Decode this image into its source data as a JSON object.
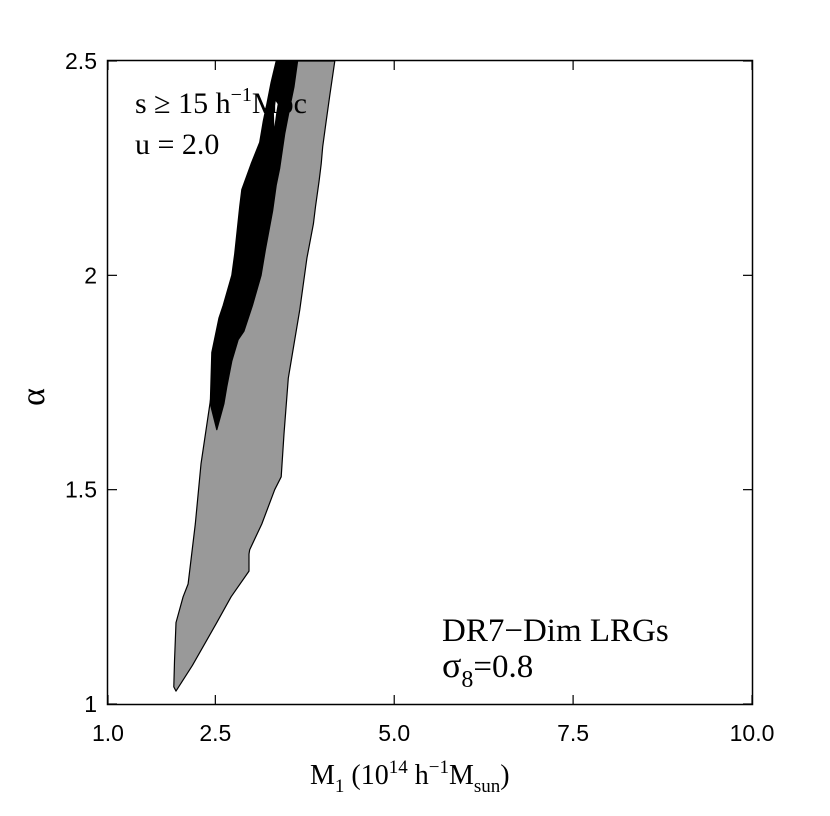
{
  "chart_data": {
    "type": "contour",
    "xlabel": {
      "main": "M",
      "sub1": "1",
      "mid": " (10",
      "sup1": "14",
      "mid2": " h",
      "sup2": "−1",
      "mid3": "M",
      "sub2": "sun",
      "end": ")"
    },
    "ylabel": "α",
    "xlim": [
      1.0,
      10.0
    ],
    "ylim": [
      1.0,
      2.5
    ],
    "x_ticks": [
      1.0,
      2.5,
      5.0,
      7.5,
      10.0
    ],
    "x_tick_labels": [
      "1.0",
      "2.5",
      "5.0",
      "7.5",
      "10.0"
    ],
    "y_ticks": [
      1.0,
      1.5,
      2.0,
      2.5
    ],
    "y_tick_labels": [
      "1",
      "1.5",
      "2",
      "2.5"
    ],
    "annotations": {
      "top_left_line1": {
        "pre": "s ≥ 15 h",
        "sup": "−1",
        "post": "Mpc"
      },
      "top_left_line2": "u = 2.0",
      "bottom_right_line1": "DR7−Dim LRGs",
      "bottom_right_line2": {
        "sigma": "σ",
        "sub": "8",
        "post": "=0.8"
      }
    },
    "colors": {
      "outer_contour": "#999999",
      "inner_contour": "#000000",
      "peak": "#ffffff",
      "axes": "#000000"
    },
    "series": [
      {
        "name": "outer_contour",
        "points": [
          [
            1.95,
            1.03
          ],
          [
            2.18,
            1.09
          ],
          [
            2.52,
            1.19
          ],
          [
            2.72,
            1.25
          ],
          [
            2.97,
            1.31
          ],
          [
            2.97,
            1.35
          ],
          [
            2.98,
            1.36
          ],
          [
            3.15,
            1.42
          ],
          [
            3.33,
            1.5
          ],
          [
            3.42,
            1.53
          ],
          [
            3.46,
            1.63
          ],
          [
            3.52,
            1.76
          ],
          [
            3.58,
            1.82
          ],
          [
            3.68,
            1.92
          ],
          [
            3.78,
            2.04
          ],
          [
            3.87,
            2.12
          ],
          [
            3.9,
            2.16
          ],
          [
            3.95,
            2.22
          ],
          [
            3.98,
            2.26
          ],
          [
            4.0,
            2.3
          ],
          [
            4.05,
            2.36
          ],
          [
            4.1,
            2.42
          ],
          [
            4.17,
            2.5
          ],
          [
            3.48,
            2.5
          ],
          [
            3.4,
            2.46
          ],
          [
            3.27,
            2.4
          ],
          [
            3.2,
            2.3
          ],
          [
            3.0,
            2.15
          ],
          [
            2.85,
            2.05
          ],
          [
            2.62,
            1.87
          ],
          [
            2.45,
            1.73
          ],
          [
            2.3,
            1.56
          ],
          [
            2.22,
            1.42
          ],
          [
            2.12,
            1.28
          ],
          [
            2.05,
            1.25
          ],
          [
            1.95,
            1.19
          ],
          [
            1.93,
            1.1
          ],
          [
            1.92,
            1.04
          ]
        ]
      },
      {
        "name": "inner_contour",
        "points": [
          [
            2.52,
            1.64
          ],
          [
            2.62,
            1.7
          ],
          [
            2.66,
            1.74
          ],
          [
            2.73,
            1.8
          ],
          [
            2.82,
            1.85
          ],
          [
            2.9,
            1.87
          ],
          [
            3.02,
            1.93
          ],
          [
            3.14,
            2.0
          ],
          [
            3.2,
            2.06
          ],
          [
            3.3,
            2.15
          ],
          [
            3.35,
            2.21
          ],
          [
            3.4,
            2.25
          ],
          [
            3.47,
            2.33
          ],
          [
            3.55,
            2.4
          ],
          [
            3.6,
            2.44
          ],
          [
            3.65,
            2.5
          ],
          [
            3.35,
            2.5
          ],
          [
            3.28,
            2.45
          ],
          [
            3.22,
            2.4
          ],
          [
            3.17,
            2.36
          ],
          [
            3.12,
            2.31
          ],
          [
            3.0,
            2.26
          ],
          [
            2.87,
            2.2
          ],
          [
            2.84,
            2.16
          ],
          [
            2.77,
            2.05
          ],
          [
            2.73,
            2.0
          ],
          [
            2.61,
            1.93
          ],
          [
            2.55,
            1.9
          ],
          [
            2.45,
            1.82
          ],
          [
            2.43,
            1.7
          ]
        ]
      },
      {
        "name": "peak",
        "points": [
          [
            3.32,
            2.33
          ],
          [
            3.36,
            2.38
          ],
          [
            3.38,
            2.4
          ],
          [
            3.34,
            2.41
          ],
          [
            3.31,
            2.38
          ]
        ]
      }
    ]
  }
}
